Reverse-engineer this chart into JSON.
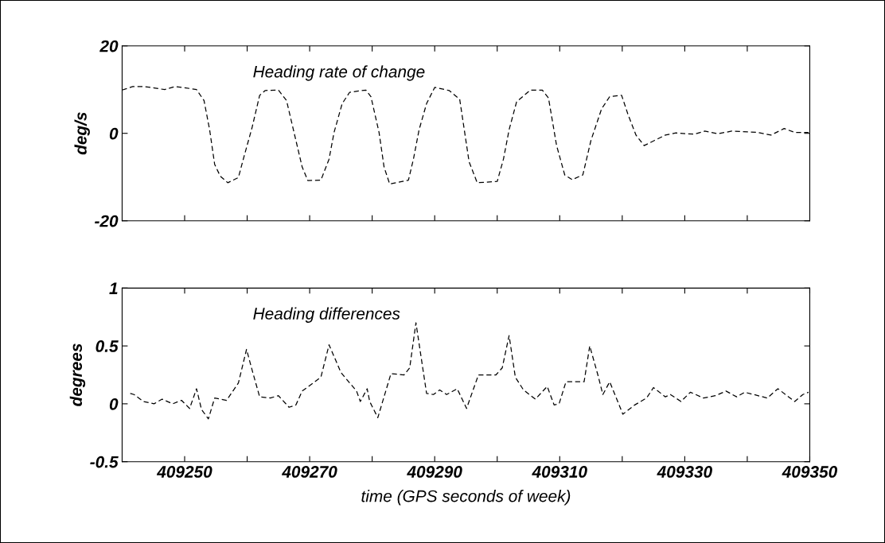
{
  "chart_data": [
    {
      "type": "line",
      "ylabel": "deg/s",
      "annotations": [
        "Heading rate of change"
      ],
      "line_style": "dashed",
      "tick_labels": "y",
      "xlim": [
        409240,
        409350
      ],
      "ylim": [
        -20,
        20
      ],
      "yticks": [
        -20,
        0,
        20
      ],
      "xticks": [
        {
          "value": 409250,
          "label": null
        },
        {
          "value": 409260,
          "label": null
        },
        {
          "value": 409270,
          "label": null
        },
        {
          "value": 409280,
          "label": null
        },
        {
          "value": 409290,
          "label": null
        },
        {
          "value": 409300,
          "label": null
        },
        {
          "value": 409310,
          "label": null
        },
        {
          "value": 409320,
          "label": null
        },
        {
          "value": 409330,
          "label": null
        },
        {
          "value": 409340,
          "label": null
        }
      ],
      "x": [
        409240,
        409241.7,
        409243.4,
        409245.1,
        409246.8,
        409248.5,
        409250.2,
        409251.9,
        409253.1,
        409254.0,
        409254.8,
        409255.7,
        409256.9,
        409258.6,
        409259.5,
        409260.8,
        409262.0,
        409262.9,
        409265.0,
        409266.3,
        409267.5,
        409268.8,
        409269.7,
        409271.8,
        409273.1,
        409273.9,
        409275.2,
        409276.4,
        409279.0,
        409279.8,
        409281.1,
        409281.9,
        409282.8,
        409285.8,
        409286.6,
        409287.5,
        409288.7,
        409290.0,
        409292.3,
        409294.0,
        409295.5,
        409296.8,
        409300.0,
        409301.0,
        409301.9,
        409303.1,
        409305.3,
        409307.2,
        409308.2,
        409309.5,
        409310.8,
        409312.0,
        409313.7,
        409315.0,
        409316.7,
        409318.0,
        409319.9,
        409320.9,
        409322.2,
        409323.5,
        409325.2,
        409326.9,
        409328.6,
        409331.5,
        409333.2,
        409335.3,
        409337.5,
        409341.7,
        409343.8,
        409345.9,
        409347.6,
        409349.8
      ],
      "series": [
        {
          "color": "#000000",
          "values": [
            9.9,
            10.7,
            10.7,
            10.4,
            10.0,
            10.7,
            10.4,
            10.0,
            7.5,
            0.8,
            -7.1,
            -9.8,
            -11.3,
            -10.1,
            -5.3,
            1.4,
            8.7,
            9.8,
            9.9,
            7.5,
            0.2,
            -7.7,
            -10.8,
            -10.7,
            -5.9,
            0.2,
            6.8,
            9.4,
            9.9,
            8.4,
            0.2,
            -7.7,
            -11.6,
            -10.7,
            -5.9,
            0.8,
            6.8,
            10.5,
            9.8,
            7.8,
            -6.5,
            -11.3,
            -11.0,
            -5.9,
            0.8,
            7.2,
            9.9,
            9.9,
            8.1,
            -2.8,
            -9.5,
            -10.6,
            -9.5,
            -1.6,
            5.6,
            8.4,
            8.7,
            4.4,
            -0.4,
            -2.8,
            -1.6,
            -0.4,
            0.1,
            -0.2,
            0.5,
            -0.1,
            0.5,
            0.2,
            -0.4,
            1.1,
            0.2,
            0.2
          ]
        }
      ]
    },
    {
      "type": "line",
      "ylabel": "degrees",
      "xlabel": "time (GPS seconds of week)",
      "annotations": [
        "Heading differences"
      ],
      "line_style": "dashed",
      "xlim": [
        409240,
        409350
      ],
      "ylim": [
        -0.5,
        1
      ],
      "yticks": [
        -0.5,
        0,
        0.5,
        1
      ],
      "xticks": [
        409250,
        {
          "value": 409260,
          "label": null
        },
        409270,
        {
          "value": 409280,
          "label": null
        },
        409290,
        {
          "value": 409300,
          "label": null
        },
        409310,
        {
          "value": 409320,
          "label": null
        },
        409330,
        {
          "value": 409340,
          "label": null
        },
        409350
      ],
      "x": [
        409241.3,
        409241.9,
        409243.4,
        409245.1,
        409246.4,
        409248.1,
        409249.5,
        409250.8,
        409251.9,
        409252.7,
        409253.8,
        409254.8,
        409256.7,
        409258.6,
        409259.9,
        409260.8,
        409262.0,
        409263.7,
        409265.0,
        409266.7,
        409267.8,
        409268.8,
        409271.8,
        409273.1,
        409275.0,
        409277.5,
        409278.1,
        409279.2,
        409279.6,
        409280.9,
        409283.0,
        409285.1,
        409286.0,
        409287.0,
        409288.7,
        409289.8,
        409290.8,
        409291.9,
        409293.6,
        409295.1,
        409297.0,
        409299.8,
        409300.8,
        409301.9,
        409302.9,
        409304.2,
        409306.1,
        409308.0,
        409309.1,
        409309.9,
        409311.0,
        409313.9,
        409314.8,
        409316.1,
        409316.9,
        409318.0,
        409320.1,
        409322.0,
        409323.9,
        409325.0,
        409326.9,
        409327.7,
        409329.4,
        409330.9,
        409333.0,
        409334.9,
        409336.6,
        409338.3,
        409339.6,
        409343.2,
        409344.9,
        409347.6,
        409348.9,
        409349.8
      ],
      "series": [
        {
          "color": "#000000",
          "values": [
            0.09,
            0.08,
            0.02,
            0.0,
            0.04,
            0.0,
            0.03,
            -0.04,
            0.13,
            -0.05,
            -0.13,
            0.05,
            0.03,
            0.18,
            0.47,
            0.29,
            0.06,
            0.05,
            0.07,
            -0.03,
            -0.01,
            0.11,
            0.23,
            0.51,
            0.27,
            0.11,
            0.02,
            0.13,
            0.02,
            -0.12,
            0.26,
            0.25,
            0.31,
            0.7,
            0.09,
            0.08,
            0.12,
            0.08,
            0.13,
            -0.04,
            0.25,
            0.25,
            0.31,
            0.59,
            0.23,
            0.12,
            0.04,
            0.15,
            -0.01,
            0.0,
            0.19,
            0.19,
            0.5,
            0.25,
            0.08,
            0.19,
            -0.09,
            -0.01,
            0.05,
            0.14,
            0.06,
            0.08,
            0.02,
            0.1,
            0.05,
            0.07,
            0.11,
            0.06,
            0.1,
            0.05,
            0.13,
            0.02,
            0.08,
            0.1
          ]
        }
      ]
    }
  ]
}
